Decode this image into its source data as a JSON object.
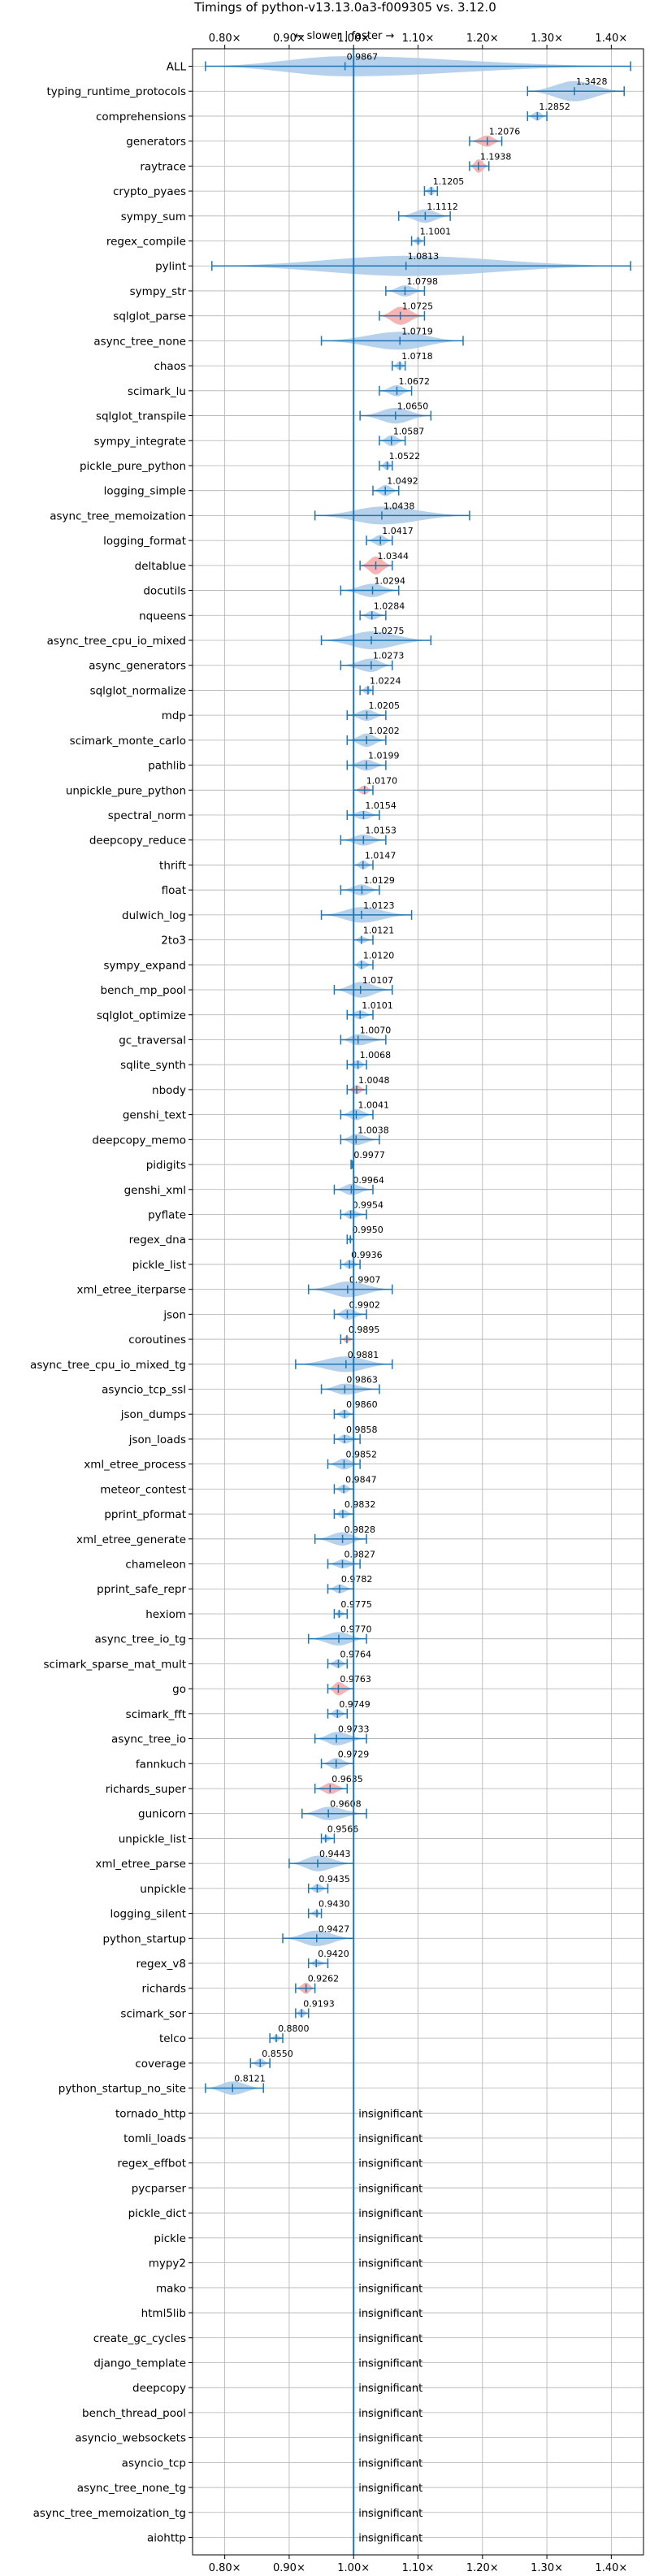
{
  "chart_data": {
    "type": "violin",
    "title": "Timings of python-v13.13.0a3-f009305 vs. 3.12.0",
    "direction_label": "← slower | faster →",
    "xlim": [
      0.75,
      1.45
    ],
    "x_ticks": [
      0.8,
      0.9,
      1.0,
      1.1,
      1.2,
      1.3,
      1.4
    ],
    "x_tick_labels": [
      "0.80×",
      "0.90×",
      "1.00×",
      "1.10×",
      "1.20×",
      "1.30×",
      "1.40×"
    ],
    "grid": true,
    "reference_line": 1.0,
    "insignificant_label": "insignificant",
    "colors": {
      "violin": "#a9c9e8",
      "violin_slower": "#f4a7a7",
      "line": "#1f77b4",
      "grid": "#b0b0b0"
    },
    "benchmarks": [
      {
        "name": "ALL",
        "value": 0.9867,
        "label": "0.9867",
        "min": 0.77,
        "max": 1.43,
        "width": 0.9,
        "slower": false
      },
      {
        "name": "typing_runtime_protocols",
        "value": 1.3428,
        "label": "1.3428",
        "min": 1.27,
        "max": 1.42,
        "width": 0.9,
        "slower": false
      },
      {
        "name": "comprehensions",
        "value": 1.2852,
        "label": "1.2852",
        "min": 1.27,
        "max": 1.3,
        "width": 0.4,
        "slower": false
      },
      {
        "name": "generators",
        "value": 1.2076,
        "label": "1.2076",
        "min": 1.18,
        "max": 1.23,
        "width": 0.5,
        "slower": true
      },
      {
        "name": "raytrace",
        "value": 1.1938,
        "label": "1.1938",
        "min": 1.18,
        "max": 1.21,
        "width": 0.6,
        "slower": true
      },
      {
        "name": "crypto_pyaes",
        "value": 1.1205,
        "label": "1.1205",
        "min": 1.11,
        "max": 1.13,
        "width": 0.4,
        "slower": false
      },
      {
        "name": "sympy_sum",
        "value": 1.1112,
        "label": "1.1112",
        "min": 1.07,
        "max": 1.15,
        "width": 0.6,
        "slower": false
      },
      {
        "name": "regex_compile",
        "value": 1.1001,
        "label": "1.1001",
        "min": 1.09,
        "max": 1.11,
        "width": 0.3,
        "slower": false
      },
      {
        "name": "pylint",
        "value": 1.0813,
        "label": "1.0813",
        "min": 0.78,
        "max": 1.43,
        "width": 0.9,
        "slower": false
      },
      {
        "name": "sympy_str",
        "value": 1.0798,
        "label": "1.0798",
        "min": 1.05,
        "max": 1.11,
        "width": 0.5,
        "slower": false
      },
      {
        "name": "sqlglot_parse",
        "value": 1.0725,
        "label": "1.0725",
        "min": 1.04,
        "max": 1.11,
        "width": 0.8,
        "slower": true
      },
      {
        "name": "async_tree_none",
        "value": 1.0719,
        "label": "1.0719",
        "min": 0.95,
        "max": 1.17,
        "width": 0.8,
        "slower": false
      },
      {
        "name": "chaos",
        "value": 1.0718,
        "label": "1.0718",
        "min": 1.06,
        "max": 1.08,
        "width": 0.4,
        "slower": false
      },
      {
        "name": "scimark_lu",
        "value": 1.0672,
        "label": "1.0672",
        "min": 1.04,
        "max": 1.09,
        "width": 0.5,
        "slower": false
      },
      {
        "name": "sqlglot_transpile",
        "value": 1.065,
        "label": "1.0650",
        "min": 1.01,
        "max": 1.12,
        "width": 0.7,
        "slower": false
      },
      {
        "name": "sympy_integrate",
        "value": 1.0587,
        "label": "1.0587",
        "min": 1.04,
        "max": 1.08,
        "width": 0.5,
        "slower": false
      },
      {
        "name": "pickle_pure_python",
        "value": 1.0522,
        "label": "1.0522",
        "min": 1.04,
        "max": 1.06,
        "width": 0.4,
        "slower": false
      },
      {
        "name": "logging_simple",
        "value": 1.0492,
        "label": "1.0492",
        "min": 1.03,
        "max": 1.07,
        "width": 0.5,
        "slower": false
      },
      {
        "name": "async_tree_memoization",
        "value": 1.0438,
        "label": "1.0438",
        "min": 0.94,
        "max": 1.18,
        "width": 0.8,
        "slower": false
      },
      {
        "name": "logging_format",
        "value": 1.0417,
        "label": "1.0417",
        "min": 1.02,
        "max": 1.06,
        "width": 0.5,
        "slower": false
      },
      {
        "name": "deltablue",
        "value": 1.0344,
        "label": "1.0344",
        "min": 1.01,
        "max": 1.06,
        "width": 0.8,
        "slower": true
      },
      {
        "name": "docutils",
        "value": 1.0294,
        "label": "1.0294",
        "min": 0.98,
        "max": 1.07,
        "width": 0.6,
        "slower": false
      },
      {
        "name": "nqueens",
        "value": 1.0284,
        "label": "1.0284",
        "min": 1.01,
        "max": 1.05,
        "width": 0.4,
        "slower": false
      },
      {
        "name": "async_tree_cpu_io_mixed",
        "value": 1.0275,
        "label": "1.0275",
        "min": 0.95,
        "max": 1.12,
        "width": 0.8,
        "slower": false
      },
      {
        "name": "async_generators",
        "value": 1.0273,
        "label": "1.0273",
        "min": 0.98,
        "max": 1.06,
        "width": 0.6,
        "slower": false
      },
      {
        "name": "sqlglot_normalize",
        "value": 1.0224,
        "label": "1.0224",
        "min": 1.01,
        "max": 1.03,
        "width": 0.4,
        "slower": false
      },
      {
        "name": "mdp",
        "value": 1.0205,
        "label": "1.0205",
        "min": 0.99,
        "max": 1.05,
        "width": 0.5,
        "slower": false
      },
      {
        "name": "scimark_monte_carlo",
        "value": 1.0202,
        "label": "1.0202",
        "min": 0.99,
        "max": 1.05,
        "width": 0.6,
        "slower": false
      },
      {
        "name": "pathlib",
        "value": 1.0199,
        "label": "1.0199",
        "min": 0.99,
        "max": 1.05,
        "width": 0.5,
        "slower": false
      },
      {
        "name": "unpickle_pure_python",
        "value": 1.017,
        "label": "1.0170",
        "min": 1.0,
        "max": 1.03,
        "width": 0.4,
        "slower": true
      },
      {
        "name": "spectral_norm",
        "value": 1.0154,
        "label": "1.0154",
        "min": 0.99,
        "max": 1.04,
        "width": 0.4,
        "slower": false
      },
      {
        "name": "deepcopy_reduce",
        "value": 1.0153,
        "label": "1.0153",
        "min": 0.98,
        "max": 1.05,
        "width": 0.5,
        "slower": false
      },
      {
        "name": "thrift",
        "value": 1.0147,
        "label": "1.0147",
        "min": 1.0,
        "max": 1.03,
        "width": 0.4,
        "slower": false
      },
      {
        "name": "float",
        "value": 1.0129,
        "label": "1.0129",
        "min": 0.98,
        "max": 1.04,
        "width": 0.5,
        "slower": false
      },
      {
        "name": "dulwich_log",
        "value": 1.0123,
        "label": "1.0123",
        "min": 0.95,
        "max": 1.09,
        "width": 0.7,
        "slower": false
      },
      {
        "name": "2to3",
        "value": 1.0121,
        "label": "1.0121",
        "min": 1.0,
        "max": 1.03,
        "width": 0.3,
        "slower": false
      },
      {
        "name": "sympy_expand",
        "value": 1.012,
        "label": "1.0120",
        "min": 1.0,
        "max": 1.03,
        "width": 0.4,
        "slower": false
      },
      {
        "name": "bench_mp_pool",
        "value": 1.0107,
        "label": "1.0107",
        "min": 0.97,
        "max": 1.06,
        "width": 0.7,
        "slower": false
      },
      {
        "name": "sqlglot_optimize",
        "value": 1.0101,
        "label": "1.0101",
        "min": 0.99,
        "max": 1.03,
        "width": 0.4,
        "slower": false
      },
      {
        "name": "gc_traversal",
        "value": 1.007,
        "label": "1.0070",
        "min": 0.98,
        "max": 1.05,
        "width": 0.5,
        "slower": false
      },
      {
        "name": "sqlite_synth",
        "value": 1.0068,
        "label": "1.0068",
        "min": 0.99,
        "max": 1.02,
        "width": 0.4,
        "slower": false
      },
      {
        "name": "nbody",
        "value": 1.0048,
        "label": "1.0048",
        "min": 0.99,
        "max": 1.02,
        "width": 0.4,
        "slower": true
      },
      {
        "name": "genshi_text",
        "value": 1.0041,
        "label": "1.0041",
        "min": 0.98,
        "max": 1.03,
        "width": 0.5,
        "slower": false
      },
      {
        "name": "deepcopy_memo",
        "value": 1.0038,
        "label": "1.0038",
        "min": 0.98,
        "max": 1.04,
        "width": 0.5,
        "slower": false
      },
      {
        "name": "pidigits",
        "value": 0.9977,
        "label": "0.9977",
        "min": 0.996,
        "max": 1.0,
        "width": 0.15,
        "slower": false
      },
      {
        "name": "genshi_xml",
        "value": 0.9964,
        "label": "0.9964",
        "min": 0.97,
        "max": 1.03,
        "width": 0.5,
        "slower": false
      },
      {
        "name": "pyflate",
        "value": 0.9954,
        "label": "0.9954",
        "min": 0.98,
        "max": 1.02,
        "width": 0.4,
        "slower": false
      },
      {
        "name": "regex_dna",
        "value": 0.995,
        "label": "0.9950",
        "min": 0.99,
        "max": 1.0,
        "width": 0.3,
        "slower": false
      },
      {
        "name": "pickle_list",
        "value": 0.9936,
        "label": "0.9936",
        "min": 0.98,
        "max": 1.01,
        "width": 0.4,
        "slower": false
      },
      {
        "name": "xml_etree_iterparse",
        "value": 0.9907,
        "label": "0.9907",
        "min": 0.93,
        "max": 1.06,
        "width": 0.7,
        "slower": false
      },
      {
        "name": "json",
        "value": 0.9902,
        "label": "0.9902",
        "min": 0.97,
        "max": 1.02,
        "width": 0.5,
        "slower": false
      },
      {
        "name": "coroutines",
        "value": 0.9895,
        "label": "0.9895",
        "min": 0.98,
        "max": 1.0,
        "width": 0.3,
        "slower": true
      },
      {
        "name": "async_tree_cpu_io_mixed_tg",
        "value": 0.9881,
        "label": "0.9881",
        "min": 0.91,
        "max": 1.06,
        "width": 0.7,
        "slower": false
      },
      {
        "name": "asyncio_tcp_ssl",
        "value": 0.9863,
        "label": "0.9863",
        "min": 0.95,
        "max": 1.04,
        "width": 0.5,
        "slower": false
      },
      {
        "name": "json_dumps",
        "value": 0.986,
        "label": "0.9860",
        "min": 0.97,
        "max": 1.0,
        "width": 0.4,
        "slower": false
      },
      {
        "name": "json_loads",
        "value": 0.9858,
        "label": "0.9858",
        "min": 0.97,
        "max": 1.01,
        "width": 0.4,
        "slower": false
      },
      {
        "name": "xml_etree_process",
        "value": 0.9852,
        "label": "0.9852",
        "min": 0.96,
        "max": 1.01,
        "width": 0.5,
        "slower": false
      },
      {
        "name": "meteor_contest",
        "value": 0.9847,
        "label": "0.9847",
        "min": 0.97,
        "max": 1.0,
        "width": 0.4,
        "slower": false
      },
      {
        "name": "pprint_pformat",
        "value": 0.9832,
        "label": "0.9832",
        "min": 0.97,
        "max": 1.0,
        "width": 0.4,
        "slower": false
      },
      {
        "name": "xml_etree_generate",
        "value": 0.9828,
        "label": "0.9828",
        "min": 0.94,
        "max": 1.02,
        "width": 0.6,
        "slower": false
      },
      {
        "name": "chameleon",
        "value": 0.9827,
        "label": "0.9827",
        "min": 0.96,
        "max": 1.01,
        "width": 0.4,
        "slower": false
      },
      {
        "name": "pprint_safe_repr",
        "value": 0.9782,
        "label": "0.9782",
        "min": 0.96,
        "max": 1.0,
        "width": 0.4,
        "slower": false
      },
      {
        "name": "hexiom",
        "value": 0.9775,
        "label": "0.9775",
        "min": 0.97,
        "max": 0.99,
        "width": 0.3,
        "slower": false
      },
      {
        "name": "async_tree_io_tg",
        "value": 0.977,
        "label": "0.9770",
        "min": 0.93,
        "max": 1.02,
        "width": 0.6,
        "slower": false
      },
      {
        "name": "scimark_sparse_mat_mult",
        "value": 0.9764,
        "label": "0.9764",
        "min": 0.96,
        "max": 0.99,
        "width": 0.4,
        "slower": false
      },
      {
        "name": "go",
        "value": 0.9763,
        "label": "0.9763",
        "min": 0.96,
        "max": 1.0,
        "width": 0.6,
        "slower": true
      },
      {
        "name": "scimark_fft",
        "value": 0.9749,
        "label": "0.9749",
        "min": 0.96,
        "max": 0.99,
        "width": 0.4,
        "slower": false
      },
      {
        "name": "async_tree_io",
        "value": 0.9733,
        "label": "0.9733",
        "min": 0.94,
        "max": 1.02,
        "width": 0.6,
        "slower": false
      },
      {
        "name": "fannkuch",
        "value": 0.9729,
        "label": "0.9729",
        "min": 0.95,
        "max": 1.0,
        "width": 0.5,
        "slower": false
      },
      {
        "name": "richards_super",
        "value": 0.9635,
        "label": "0.9635",
        "min": 0.94,
        "max": 0.99,
        "width": 0.5,
        "slower": true
      },
      {
        "name": "gunicorn",
        "value": 0.9608,
        "label": "0.9608",
        "min": 0.92,
        "max": 1.02,
        "width": 0.6,
        "slower": false
      },
      {
        "name": "unpickle_list",
        "value": 0.9566,
        "label": "0.9566",
        "min": 0.95,
        "max": 0.97,
        "width": 0.3,
        "slower": false
      },
      {
        "name": "xml_etree_parse",
        "value": 0.9443,
        "label": "0.9443",
        "min": 0.9,
        "max": 1.0,
        "width": 0.7,
        "slower": false
      },
      {
        "name": "unpickle",
        "value": 0.9435,
        "label": "0.9435",
        "min": 0.93,
        "max": 0.96,
        "width": 0.4,
        "slower": false
      },
      {
        "name": "logging_silent",
        "value": 0.943,
        "label": "0.9430",
        "min": 0.93,
        "max": 0.95,
        "width": 0.3,
        "slower": false
      },
      {
        "name": "python_startup",
        "value": 0.9427,
        "label": "0.9427",
        "min": 0.89,
        "max": 1.0,
        "width": 0.7,
        "slower": false
      },
      {
        "name": "regex_v8",
        "value": 0.942,
        "label": "0.9420",
        "min": 0.93,
        "max": 0.96,
        "width": 0.3,
        "slower": false
      },
      {
        "name": "richards",
        "value": 0.9262,
        "label": "0.9262",
        "min": 0.91,
        "max": 0.94,
        "width": 0.5,
        "slower": true
      },
      {
        "name": "scimark_sor",
        "value": 0.9193,
        "label": "0.9193",
        "min": 0.91,
        "max": 0.93,
        "width": 0.4,
        "slower": false
      },
      {
        "name": "telco",
        "value": 0.88,
        "label": "0.8800",
        "min": 0.87,
        "max": 0.89,
        "width": 0.3,
        "slower": false
      },
      {
        "name": "coverage",
        "value": 0.855,
        "label": "0.8550",
        "min": 0.84,
        "max": 0.87,
        "width": 0.4,
        "slower": false
      },
      {
        "name": "python_startup_no_site",
        "value": 0.8121,
        "label": "0.8121",
        "min": 0.77,
        "max": 0.86,
        "width": 0.6,
        "slower": false
      }
    ],
    "insignificant": [
      "tornado_http",
      "tomli_loads",
      "regex_effbot",
      "pycparser",
      "pickle_dict",
      "pickle",
      "mypy2",
      "mako",
      "html5lib",
      "create_gc_cycles",
      "django_template",
      "deepcopy",
      "bench_thread_pool",
      "asyncio_websockets",
      "asyncio_tcp",
      "async_tree_none_tg",
      "async_tree_memoization_tg",
      "aiohttp"
    ]
  }
}
